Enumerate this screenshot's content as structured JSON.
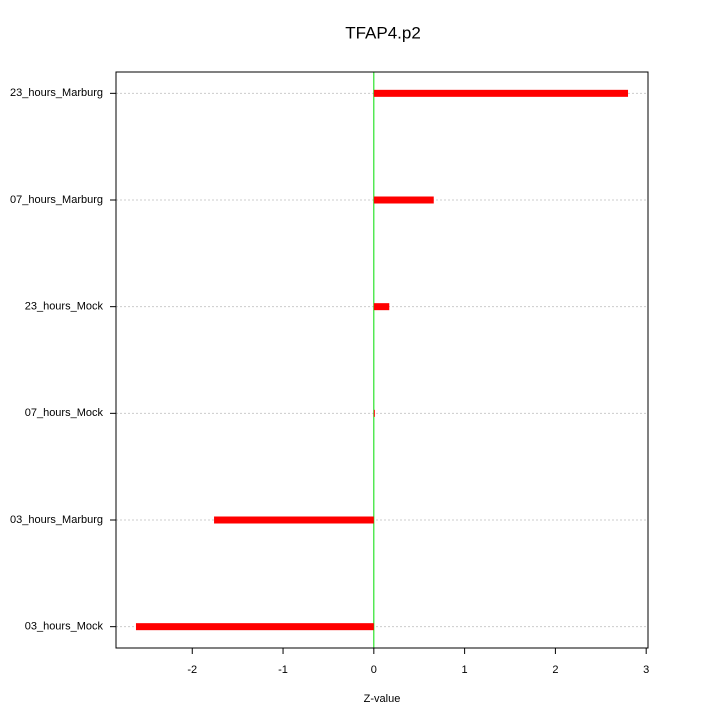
{
  "chart_data": {
    "type": "bar",
    "orientation": "horizontal",
    "title": "TFAP4.p2",
    "x_label": "Z-value",
    "categories": [
      "03_hours_Mock",
      "03_hours_Marburg",
      "07_hours_Mock",
      "23_hours_Mock",
      "07_hours_Marburg",
      "23_hours_Marburg"
    ],
    "values": [
      -2.62,
      -1.76,
      0.01,
      0.17,
      0.66,
      2.8
    ],
    "color": "#ff0000",
    "xlim": [
      -2.84,
      3.02
    ],
    "xticks": [
      -2,
      -1,
      0,
      1,
      2,
      3
    ],
    "grid": true,
    "reference_line": 0,
    "reference_line_color": "#00dd00"
  }
}
